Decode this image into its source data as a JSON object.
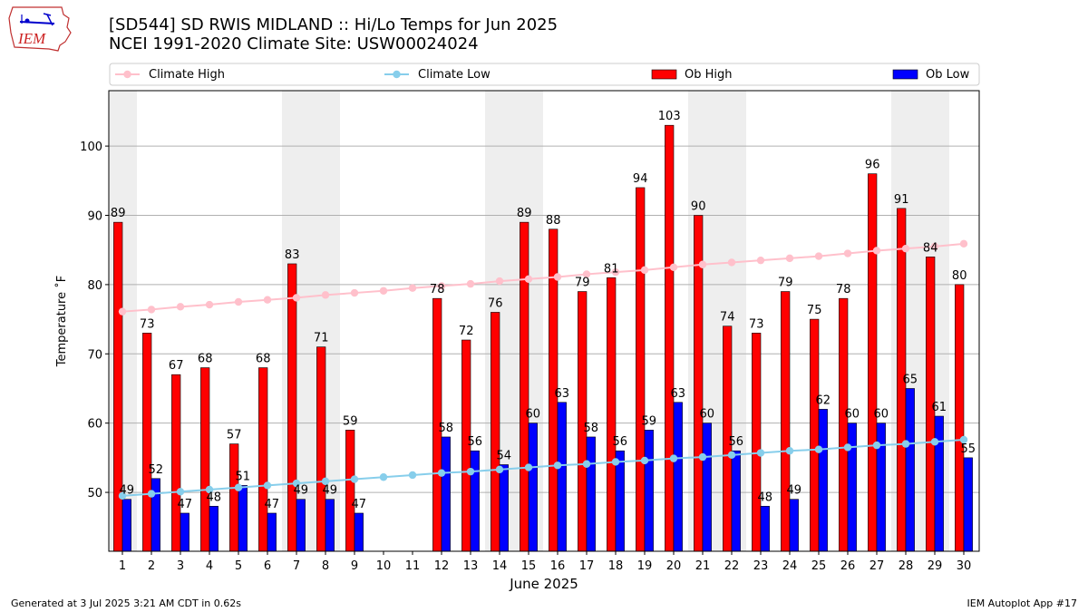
{
  "title_line1": "[SD544] SD RWIS MIDLAND :: Hi/Lo Temps for Jun 2025",
  "title_line2": "NCEI 1991-2020 Climate Site: USW00024024",
  "logo_text": "IEM",
  "footer_left": "Generated at 3 Jul 2025 3:21 AM CDT in 0.62s",
  "footer_right": "IEM Autoplot App #17",
  "colors": {
    "ob_high": "#ff0000",
    "ob_low": "#0000ff",
    "climate_high": "#ffc0cb",
    "climate_low": "#87ceeb",
    "weekend_shade": "#eeeeee",
    "grid": "#b0b0b0"
  },
  "chart_data": {
    "type": "bar",
    "xlabel": "June 2025",
    "ylabel": "Temperature ˚F",
    "ylim": [
      41.5,
      108
    ],
    "yticks": [
      50,
      60,
      70,
      80,
      90,
      100
    ],
    "grid": "horizontal",
    "legend_placement": "top",
    "weekend_bands": [
      [
        1,
        1
      ],
      [
        7,
        8
      ],
      [
        14,
        15
      ],
      [
        21,
        22
      ],
      [
        28,
        29
      ]
    ],
    "categories": [
      1,
      2,
      3,
      4,
      5,
      6,
      7,
      8,
      9,
      10,
      11,
      12,
      13,
      14,
      15,
      16,
      17,
      18,
      19,
      20,
      21,
      22,
      23,
      24,
      25,
      26,
      27,
      28,
      29,
      30
    ],
    "series": [
      {
        "name": "Ob High",
        "kind": "bar",
        "values": [
          89,
          73,
          67,
          68,
          57,
          68,
          83,
          71,
          59,
          null,
          null,
          78,
          72,
          76,
          89,
          88,
          79,
          81,
          94,
          103,
          90,
          74,
          73,
          79,
          75,
          78,
          96,
          91,
          84,
          80
        ]
      },
      {
        "name": "Ob Low",
        "kind": "bar",
        "values": [
          49,
          52,
          47,
          48,
          51,
          47,
          49,
          49,
          47,
          null,
          null,
          58,
          56,
          54,
          60,
          63,
          58,
          56,
          59,
          63,
          60,
          56,
          48,
          49,
          62,
          60,
          60,
          65,
          61,
          55
        ]
      },
      {
        "name": "Climate High",
        "kind": "line",
        "values": [
          76.1,
          76.4,
          76.8,
          77.1,
          77.5,
          77.8,
          78.1,
          78.5,
          78.8,
          79.1,
          79.5,
          79.8,
          80.1,
          80.5,
          80.8,
          81.1,
          81.5,
          81.8,
          82.1,
          82.5,
          82.9,
          83.2,
          83.5,
          83.8,
          84.1,
          84.5,
          84.9,
          85.2,
          85.5,
          85.9
        ]
      },
      {
        "name": "Climate Low",
        "kind": "line",
        "values": [
          49.5,
          49.8,
          50.1,
          50.4,
          50.7,
          51.0,
          51.3,
          51.6,
          51.9,
          52.2,
          52.5,
          52.8,
          53.0,
          53.3,
          53.6,
          53.9,
          54.1,
          54.4,
          54.6,
          54.9,
          55.1,
          55.4,
          55.7,
          56.0,
          56.2,
          56.5,
          56.8,
          57.0,
          57.3,
          57.6
        ]
      }
    ]
  }
}
